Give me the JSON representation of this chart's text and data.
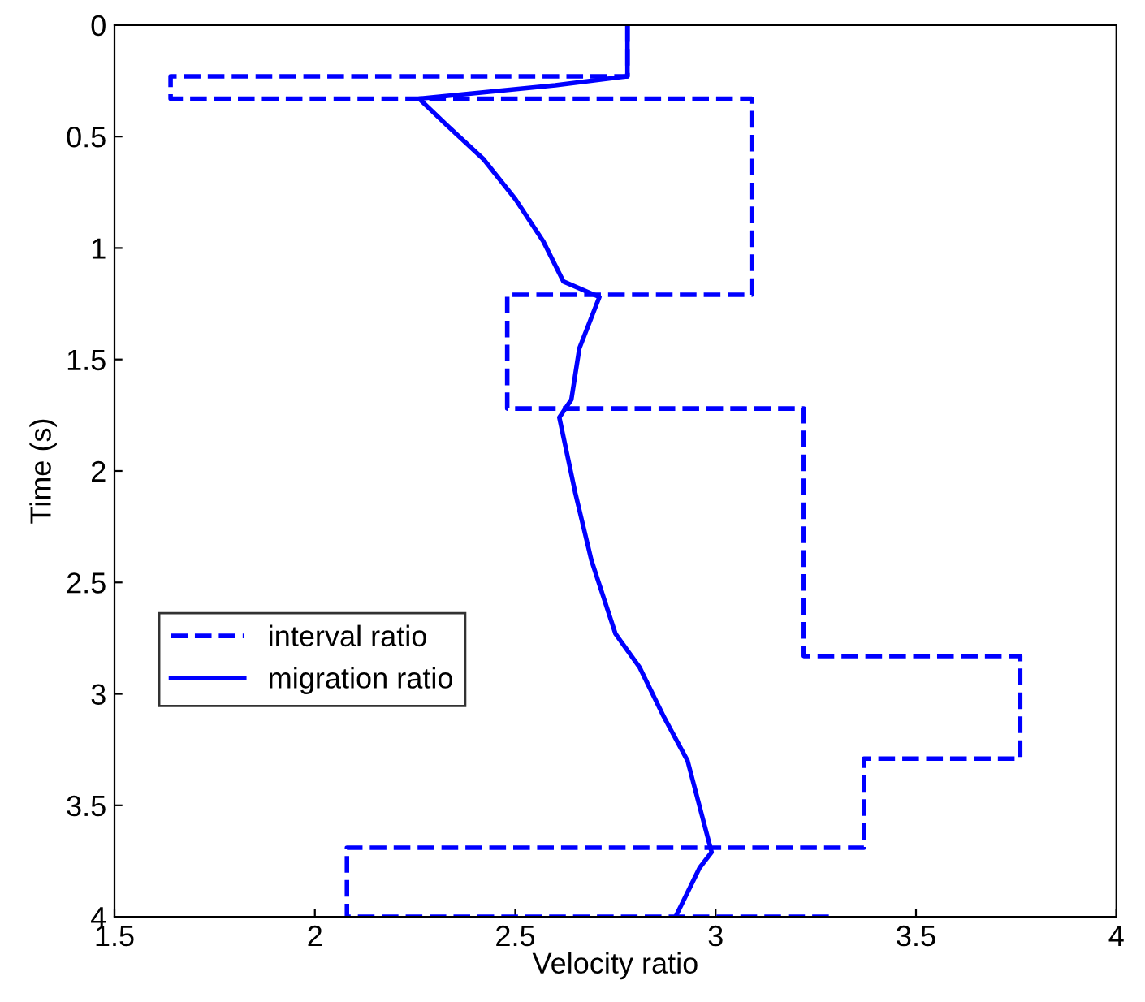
{
  "chart_data": {
    "type": "line",
    "xlabel": "Velocity ratio",
    "ylabel": "Time (s)",
    "xlim": [
      1.5,
      4
    ],
    "xticks": [
      1.5,
      2,
      2.5,
      3,
      3.5,
      4
    ],
    "ylim": [
      4,
      0
    ],
    "yticks": [
      0,
      0.5,
      1,
      1.5,
      2,
      2.5,
      3,
      3.5,
      4
    ],
    "grid": false,
    "legend": "bottom left",
    "marker": "none",
    "series": [
      {
        "name": "interval ratio",
        "color": "#0000ff",
        "line_style": "dashed",
        "x": [
          2.78,
          2.78,
          1.64,
          1.64,
          3.09,
          3.09,
          2.48,
          2.48,
          3.22,
          3.22,
          3.76,
          3.76,
          3.37,
          3.37,
          2.08,
          2.08,
          3.3
        ],
        "values": [
          0,
          0.23,
          0.23,
          0.33,
          0.33,
          1.21,
          1.21,
          1.72,
          1.72,
          2.83,
          2.83,
          3.29,
          3.29,
          3.69,
          3.69,
          4.0,
          4.0
        ]
      },
      {
        "name": "migration ratio",
        "color": "#0000ff",
        "line_style": "solid",
        "x": [
          2.78,
          2.78,
          2.6,
          2.26,
          2.33,
          2.42,
          2.5,
          2.57,
          2.62,
          2.71,
          2.66,
          2.64,
          2.61,
          2.65,
          2.69,
          2.75,
          2.81,
          2.87,
          2.93,
          2.99,
          2.96,
          2.9
        ],
        "values": [
          0,
          0.23,
          0.27,
          0.33,
          0.45,
          0.6,
          0.78,
          0.97,
          1.15,
          1.22,
          1.45,
          1.68,
          1.76,
          2.1,
          2.4,
          2.73,
          2.88,
          3.1,
          3.3,
          3.71,
          3.78,
          4.0
        ]
      }
    ]
  }
}
